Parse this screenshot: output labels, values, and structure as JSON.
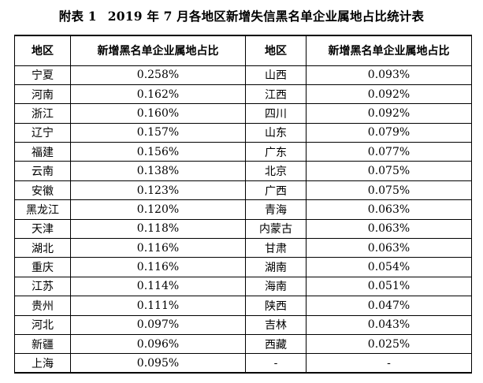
{
  "title": {
    "label": "附表 1",
    "text": "2019 年 7 月各地区新增失信黑名单企业属地占比统计表"
  },
  "table": {
    "headers": [
      "地区",
      "新增黑名单企业属地占比",
      "地区",
      "新增黑名单企业属地占比"
    ],
    "rows": [
      [
        "宁夏",
        "0.258%",
        "山西",
        "0.093%"
      ],
      [
        "河南",
        "0.162%",
        "江西",
        "0.092%"
      ],
      [
        "浙江",
        "0.160%",
        "四川",
        "0.092%"
      ],
      [
        "辽宁",
        "0.157%",
        "山东",
        "0.079%"
      ],
      [
        "福建",
        "0.156%",
        "广东",
        "0.077%"
      ],
      [
        "云南",
        "0.138%",
        "北京",
        "0.075%"
      ],
      [
        "安徽",
        "0.123%",
        "广西",
        "0.075%"
      ],
      [
        "黑龙江",
        "0.120%",
        "青海",
        "0.063%"
      ],
      [
        "天津",
        "0.118%",
        "内蒙古",
        "0.063%"
      ],
      [
        "湖北",
        "0.116%",
        "甘肃",
        "0.063%"
      ],
      [
        "重庆",
        "0.116%",
        "湖南",
        "0.054%"
      ],
      [
        "江苏",
        "0.114%",
        "海南",
        "0.051%"
      ],
      [
        "贵州",
        "0.111%",
        "陕西",
        "0.047%"
      ],
      [
        "河北",
        "0.097%",
        "吉林",
        "0.043%"
      ],
      [
        "新疆",
        "0.096%",
        "西藏",
        "0.025%"
      ],
      [
        "上海",
        "0.095%",
        "-",
        "-"
      ]
    ]
  }
}
